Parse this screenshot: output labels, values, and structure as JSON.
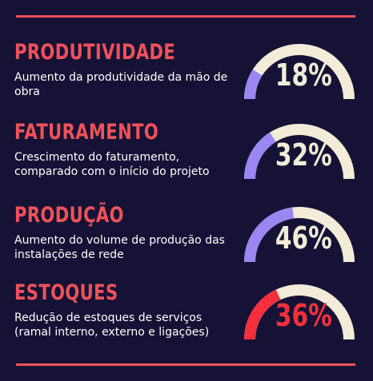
{
  "colors": {
    "background": "#161236",
    "accent": "#f0525a",
    "track": "#f2ecd8",
    "fill_purple": "#9b86f2",
    "fill_red": "#f5303c",
    "text": "#ffffff",
    "value_light": "#f2ecd8"
  },
  "metrics": [
    {
      "title": "PRODUTIVIDADE",
      "description": "Aumento da produtividade da mão de obra",
      "value_label": "18%",
      "percent": 18,
      "fill_color": "#9b86f2",
      "value_color": "#f2ecd8"
    },
    {
      "title": "FATURAMENTO",
      "description": "Crescimento do faturamento, comparado com o início do projeto",
      "value_label": "32%",
      "percent": 32,
      "fill_color": "#9b86f2",
      "value_color": "#f2ecd8"
    },
    {
      "title": "PRODUÇÃO",
      "description": "Aumento do volume de produção das instalações de rede",
      "value_label": "46%",
      "percent": 46,
      "fill_color": "#9b86f2",
      "value_color": "#f2ecd8"
    },
    {
      "title": "ESTOQUES",
      "description": "Redução de estoques de serviços (ramal interno, externo e ligações)",
      "value_label": "36%",
      "percent": 36,
      "fill_color": "#f5303c",
      "value_color": "#f5303c"
    }
  ]
}
